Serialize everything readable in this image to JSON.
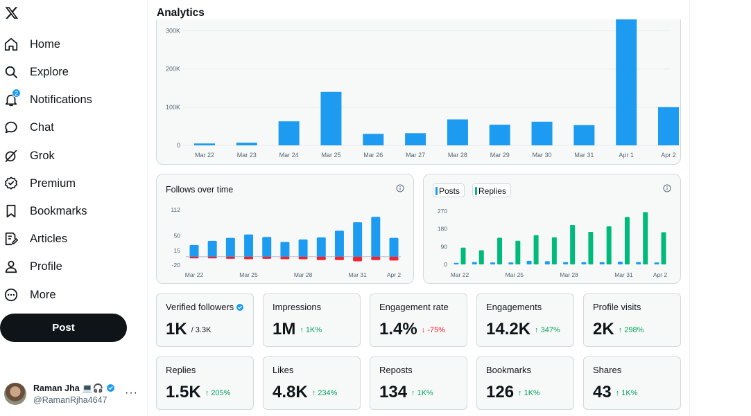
{
  "sidebar": {
    "logo_icon": "x-logo-icon",
    "items": [
      {
        "label": "Home",
        "icon": "home-icon"
      },
      {
        "label": "Explore",
        "icon": "search-icon"
      },
      {
        "label": "Notifications",
        "icon": "bell-icon",
        "badge": "2"
      },
      {
        "label": "Chat",
        "icon": "chat-bubble-icon"
      },
      {
        "label": "Grok",
        "icon": "grok-icon"
      },
      {
        "label": "Premium",
        "icon": "premium-badge-icon"
      },
      {
        "label": "Bookmarks",
        "icon": "bookmark-icon"
      },
      {
        "label": "Articles",
        "icon": "article-icon"
      },
      {
        "label": "Profile",
        "icon": "person-icon"
      },
      {
        "label": "More",
        "icon": "more-circle-icon"
      }
    ],
    "post_label": "Post",
    "account": {
      "name": "Raman Jha 💻🎧",
      "handle": "@RamanRjha4647",
      "more": "···"
    }
  },
  "main": {
    "title": "Analytics"
  },
  "colors": {
    "accent": "#1d9bf0",
    "green": "#00ba7c",
    "red": "#f4212e"
  },
  "chart_data": [
    {
      "type": "bar",
      "title": "",
      "categories": [
        "Mar 22",
        "Mar 23",
        "Mar 24",
        "Mar 25",
        "Mar 26",
        "Mar 27",
        "Mar 28",
        "Mar 29",
        "Mar 30",
        "Mar 31",
        "Apr 1",
        "Apr 2"
      ],
      "values": [
        5000,
        7000,
        63000,
        140000,
        30000,
        32000,
        68000,
        54000,
        62000,
        53000,
        330000,
        100000
      ],
      "y_ticks": [
        "0",
        "100K",
        "200K",
        "300K"
      ],
      "y_tick_values": [
        0,
        100000,
        200000,
        300000
      ],
      "ylim": [
        0,
        330000
      ]
    },
    {
      "type": "bar",
      "title": "Follows over time",
      "categories": [
        "Mar 22",
        "Mar 23",
        "Mar 24",
        "Mar 25",
        "Mar 26",
        "Mar 27",
        "Mar 28",
        "Mar 29",
        "Mar 30",
        "Mar 31",
        "Apr 1",
        "Apr 2"
      ],
      "x_tick_labels": [
        "Mar 22",
        "Mar 25",
        "Mar 28",
        "Mar 31",
        "Apr 2"
      ],
      "x_tick_indices": [
        0,
        3,
        6,
        9,
        11
      ],
      "series": [
        {
          "name": "Follows",
          "values": [
            28,
            38,
            45,
            53,
            47,
            35,
            41,
            46,
            62,
            82,
            95,
            45
          ]
        },
        {
          "name": "Unfollows",
          "values": [
            -4,
            -4,
            -5,
            -6,
            -5,
            -6,
            -6,
            -8,
            -8,
            -11,
            -8,
            -9
          ]
        }
      ],
      "y_ticks": [
        "112",
        "50",
        "15",
        "-20"
      ],
      "y_tick_values": [
        112,
        50,
        15,
        -20
      ],
      "ylim": [
        -20,
        112
      ]
    },
    {
      "type": "bar",
      "title": "",
      "legend": [
        "Posts",
        "Replies"
      ],
      "categories": [
        "Mar 22",
        "Mar 23",
        "Mar 24",
        "Mar 25",
        "Mar 26",
        "Mar 27",
        "Mar 28",
        "Mar 29",
        "Mar 30",
        "Mar 31",
        "Apr 1",
        "Apr 2"
      ],
      "x_tick_labels": [
        "Mar 22",
        "Mar 25",
        "Mar 28",
        "Mar 31",
        "Apr 2"
      ],
      "x_tick_indices": [
        0,
        3,
        6,
        9,
        11
      ],
      "series": [
        {
          "name": "Posts",
          "values": [
            8,
            12,
            10,
            10,
            18,
            16,
            12,
            12,
            12,
            14,
            12,
            10
          ]
        },
        {
          "name": "Replies",
          "values": [
            85,
            72,
            135,
            120,
            148,
            137,
            200,
            165,
            193,
            240,
            265,
            163
          ]
        }
      ],
      "y_ticks": [
        "270",
        "180",
        "90",
        "0"
      ],
      "y_tick_values": [
        270,
        180,
        90,
        0
      ],
      "ylim": [
        0,
        285
      ]
    }
  ],
  "metrics": [
    {
      "label": "Verified followers",
      "value": "1K",
      "extra": "/ 3.3K",
      "trend": "none",
      "verified": true
    },
    {
      "label": "Impressions",
      "value": "1M",
      "extra": "↑ 1K%",
      "trend": "up"
    },
    {
      "label": "Engagement rate",
      "value": "1.4%",
      "extra": "↓ -75%",
      "trend": "down"
    },
    {
      "label": "Engagements",
      "value": "14.2K",
      "extra": "↑ 347%",
      "trend": "up"
    },
    {
      "label": "Profile visits",
      "value": "2K",
      "extra": "↑ 298%",
      "trend": "up"
    },
    {
      "label": "Replies",
      "value": "1.5K",
      "extra": "↑ 205%",
      "trend": "up"
    },
    {
      "label": "Likes",
      "value": "4.8K",
      "extra": "↑ 234%",
      "trend": "up"
    },
    {
      "label": "Reposts",
      "value": "134",
      "extra": "↑ 1K%",
      "trend": "up"
    },
    {
      "label": "Bookmarks",
      "value": "126",
      "extra": "↑ 1K%",
      "trend": "up"
    },
    {
      "label": "Shares",
      "value": "43",
      "extra": "↑ 1K%",
      "trend": "up"
    }
  ]
}
